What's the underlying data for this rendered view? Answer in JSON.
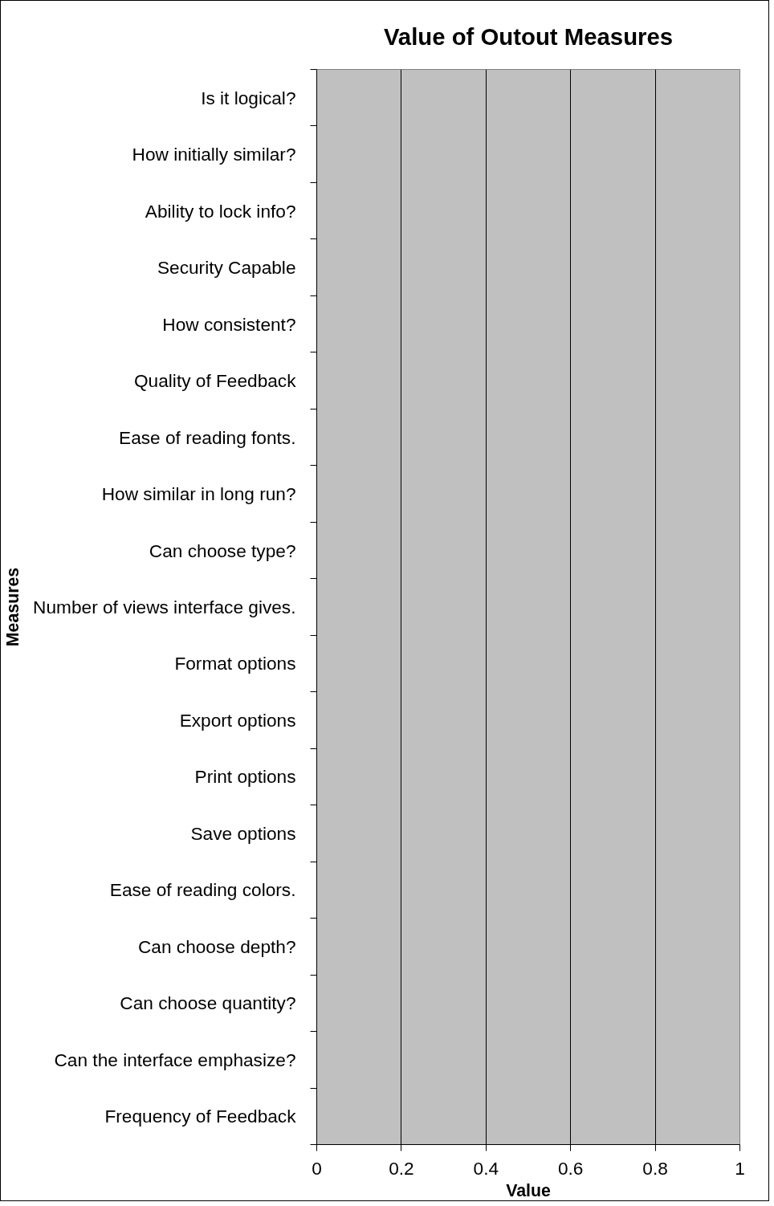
{
  "chart_data": {
    "type": "bar",
    "orientation": "horizontal",
    "title": "Value of Outout Measures",
    "xlabel": "Value",
    "ylabel": "Measures",
    "categories": [
      "Is it logical?",
      "How initially similar?",
      "Ability to lock info?",
      "Security Capable",
      "How consistent?",
      "Quality of Feedback",
      "Ease of reading fonts.",
      "How similar in long run?",
      "Can choose type?",
      "Number of views interface gives.",
      "Format options",
      "Export options",
      "Print options",
      "Save options",
      "Ease of reading colors.",
      "Can choose depth?",
      "Can choose quantity?",
      "Can the interface emphasize?",
      "Frequency of Feedback"
    ],
    "values": [
      null,
      null,
      null,
      null,
      null,
      null,
      null,
      null,
      null,
      null,
      null,
      null,
      null,
      null,
      null,
      null,
      null,
      null,
      null
    ],
    "xlim": [
      0,
      1
    ],
    "xticks": [
      0,
      0.2,
      0.4,
      0.6,
      0.8,
      1
    ],
    "grid": "x"
  }
}
